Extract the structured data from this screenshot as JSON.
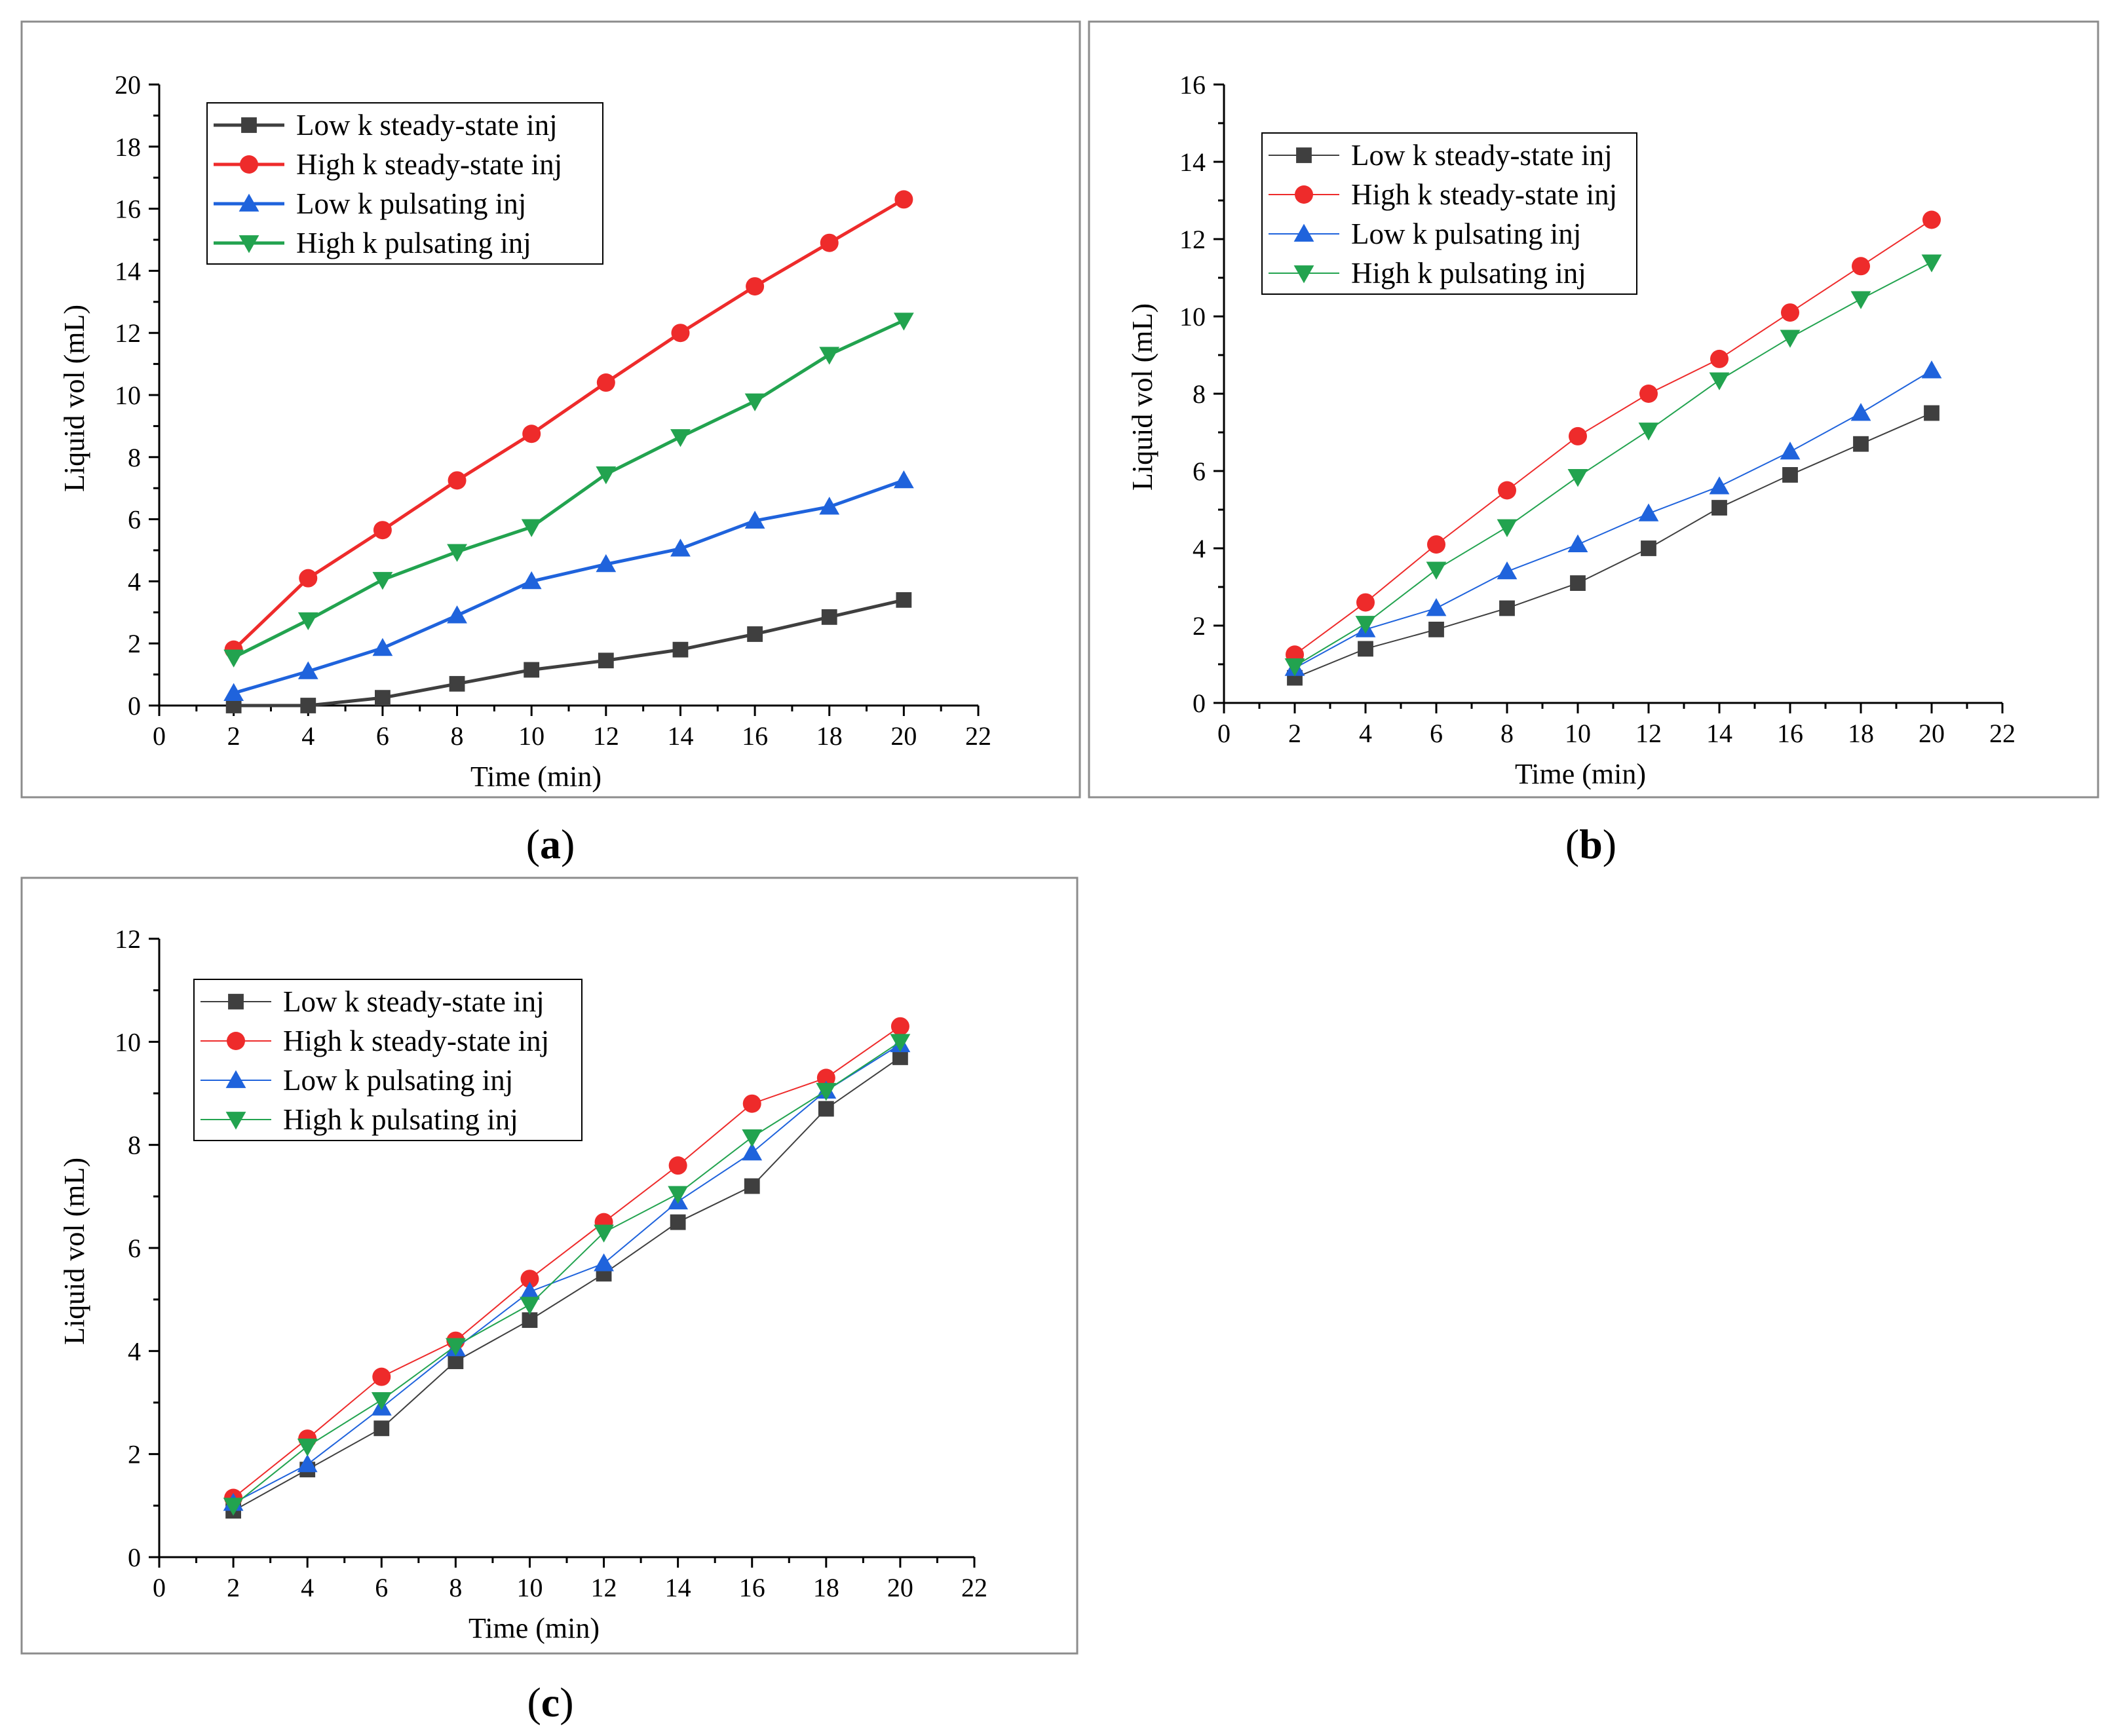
{
  "colors": {
    "low_steady": "#3f3f3f",
    "high_steady": "#ee2b2b",
    "low_pulsing": "#1f63dc",
    "high_pulsing": "#22a34f"
  },
  "chart_data": [
    {
      "type": "line",
      "panel": "a",
      "caption_letter": "a",
      "caption_open": "(",
      "caption_close": ")",
      "xlabel": "Time (min)",
      "ylabel": "Liquid vol (mL)",
      "xlim": [
        0,
        22
      ],
      "ylim": [
        0,
        20
      ],
      "xticks": [
        0,
        2,
        4,
        6,
        8,
        10,
        12,
        14,
        16,
        18,
        20,
        22
      ],
      "yticks": [
        0,
        2,
        4,
        6,
        8,
        10,
        12,
        14,
        16,
        18,
        20
      ],
      "legend_position": "top-left",
      "x": [
        2,
        4,
        6,
        8,
        10,
        12,
        14,
        16,
        18,
        20
      ],
      "series": [
        {
          "name": "Low k steady-state inj",
          "marker": "square",
          "color_key": "low_steady",
          "values": [
            0.0,
            0.0,
            0.25,
            0.7,
            1.15,
            1.45,
            1.8,
            2.3,
            2.85,
            3.4
          ]
        },
        {
          "name": "High k steady-state inj",
          "marker": "circle",
          "color_key": "high_steady",
          "values": [
            1.8,
            4.1,
            5.65,
            7.25,
            8.75,
            10.4,
            12.0,
            13.5,
            14.9,
            16.3
          ]
        },
        {
          "name": "Low k pulsating inj",
          "marker": "triangle-up",
          "color_key": "low_pulsing",
          "values": [
            0.4,
            1.1,
            1.85,
            2.9,
            4.0,
            4.55,
            5.05,
            5.95,
            6.4,
            7.25
          ]
        },
        {
          "name": "High k pulsating inj",
          "marker": "triangle-down",
          "color_key": "high_pulsing",
          "values": [
            1.55,
            2.75,
            4.05,
            4.95,
            5.75,
            7.45,
            8.65,
            9.8,
            11.3,
            12.4
          ]
        }
      ]
    },
    {
      "type": "line",
      "panel": "b",
      "caption_letter": "b",
      "caption_open": "(",
      "caption_close": ")",
      "xlabel": "Time (min)",
      "ylabel": "Liquid vol (mL)",
      "xlim": [
        0,
        22
      ],
      "ylim": [
        0,
        16
      ],
      "xticks": [
        0,
        2,
        4,
        6,
        8,
        10,
        12,
        14,
        16,
        18,
        20,
        22
      ],
      "yticks": [
        0,
        2,
        4,
        6,
        8,
        10,
        12,
        14,
        16
      ],
      "legend_position": "top-left",
      "x": [
        2,
        4,
        6,
        8,
        10,
        12,
        14,
        16,
        18,
        20
      ],
      "series": [
        {
          "name": "Low k steady-state inj",
          "marker": "square",
          "color_key": "low_steady",
          "values": [
            0.65,
            1.4,
            1.9,
            2.45,
            3.1,
            4.0,
            5.05,
            5.9,
            6.7,
            7.5
          ]
        },
        {
          "name": "High k steady-state inj",
          "marker": "circle",
          "color_key": "high_steady",
          "values": [
            1.25,
            2.6,
            4.1,
            5.5,
            6.9,
            8.0,
            8.9,
            10.1,
            11.3,
            12.5
          ]
        },
        {
          "name": "Low k pulsating inj",
          "marker": "triangle-up",
          "color_key": "low_pulsing",
          "values": [
            0.9,
            1.9,
            2.45,
            3.4,
            4.1,
            4.9,
            5.6,
            6.5,
            7.5,
            8.6
          ]
        },
        {
          "name": "High k pulsating inj",
          "marker": "triangle-down",
          "color_key": "high_pulsing",
          "values": [
            0.95,
            2.05,
            3.45,
            4.55,
            5.85,
            7.05,
            8.35,
            9.45,
            10.45,
            11.4
          ]
        }
      ]
    },
    {
      "type": "line",
      "panel": "c",
      "caption_letter": "c",
      "caption_open": "(",
      "caption_close": ")",
      "xlabel": "Time (min)",
      "ylabel": "Liquid vol (mL)",
      "xlim": [
        0,
        22
      ],
      "ylim": [
        0,
        12
      ],
      "xticks": [
        0,
        2,
        4,
        6,
        8,
        10,
        12,
        14,
        16,
        18,
        20,
        22
      ],
      "yticks": [
        0,
        2,
        4,
        6,
        8,
        10,
        12
      ],
      "legend_position": "top-left",
      "x": [
        2,
        4,
        6,
        8,
        10,
        12,
        14,
        16,
        18,
        20
      ],
      "series": [
        {
          "name": "Low k steady-state inj",
          "marker": "square",
          "color_key": "low_steady",
          "values": [
            0.9,
            1.7,
            2.5,
            3.8,
            4.6,
            5.5,
            6.5,
            7.2,
            8.7,
            9.7
          ]
        },
        {
          "name": "High k steady-state inj",
          "marker": "circle",
          "color_key": "high_steady",
          "values": [
            1.15,
            2.3,
            3.5,
            4.2,
            5.4,
            6.5,
            7.6,
            8.8,
            9.3,
            10.3
          ]
        },
        {
          "name": "Low k pulsating inj",
          "marker": "triangle-up",
          "color_key": "low_pulsing",
          "values": [
            1.05,
            1.8,
            2.9,
            4.05,
            5.15,
            5.7,
            6.9,
            7.85,
            9.05,
            9.95
          ]
        },
        {
          "name": "High k pulsating inj",
          "marker": "triangle-down",
          "color_key": "high_pulsing",
          "values": [
            1.0,
            2.15,
            3.05,
            4.1,
            4.9,
            6.3,
            7.05,
            8.15,
            9.05,
            10.0
          ]
        }
      ]
    }
  ]
}
